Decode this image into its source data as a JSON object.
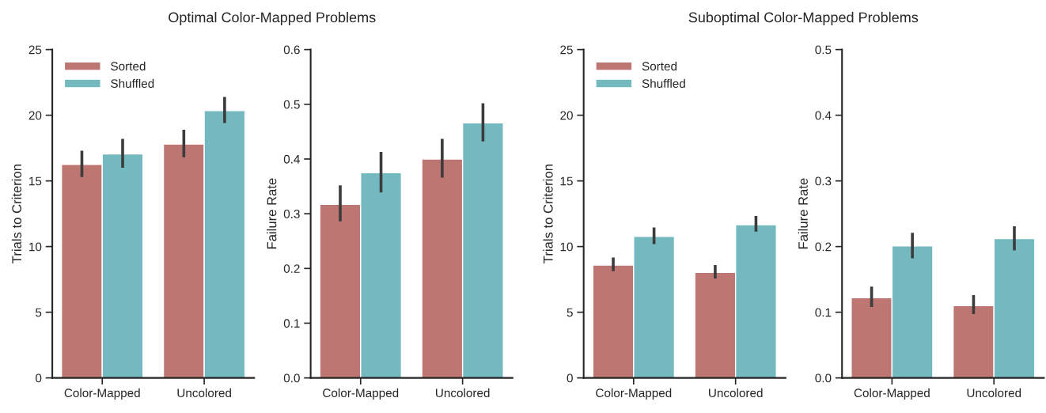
{
  "chart_data": [
    {
      "type": "bar",
      "title": "Optimal Color-Mapped Problems",
      "ylabel": "Trials to Criterion",
      "categories": [
        "Color-Mapped",
        "Uncolored"
      ],
      "ylim": [
        0,
        25
      ],
      "yticks": [
        0,
        5,
        10,
        15,
        20,
        25
      ],
      "legend": "top left",
      "series": [
        {
          "name": "Sorted",
          "color": "#cb6b65",
          "values": [
            16.25,
            17.8
          ],
          "errors": [
            [
              15.3,
              17.3
            ],
            [
              16.8,
              18.9
            ]
          ]
        },
        {
          "name": "Shuffled",
          "color": "#68c4cb",
          "values": [
            17.05,
            20.35
          ],
          "errors": [
            [
              16.0,
              18.2
            ],
            [
              19.4,
              21.4
            ]
          ]
        }
      ]
    },
    {
      "type": "bar",
      "ylabel": "Failure Rate",
      "categories": [
        "Color-Mapped",
        "Uncolored"
      ],
      "ylim": [
        0,
        0.6
      ],
      "yticks": [
        {
          "value": 0,
          "label": "0.0"
        },
        0.1,
        0.2,
        0.3,
        0.4,
        0.5,
        0.6
      ],
      "series": [
        {
          "color": "#cb6b65",
          "values": [
            0.317,
            0.4
          ],
          "errors": [
            [
              0.286,
              0.352
            ],
            [
              0.366,
              0.437
            ]
          ]
        },
        {
          "color": "#68c4cb",
          "values": [
            0.375,
            0.466
          ],
          "errors": [
            [
              0.339,
              0.413
            ],
            [
              0.432,
              0.502
            ]
          ]
        }
      ]
    },
    {
      "type": "bar",
      "title": "Suboptimal Color-Mapped Problems",
      "ylabel": "Trials to Criterion",
      "categories": [
        "Color-Mapped",
        "Uncolored"
      ],
      "ylim": [
        0,
        25
      ],
      "yticks": [
        0,
        5,
        10,
        15,
        20,
        25
      ],
      "legend": "top left",
      "series": [
        {
          "name": "Sorted",
          "color": "#cb6b65",
          "values": [
            8.59,
            8.03
          ],
          "errors": [
            [
              8.13,
              9.17
            ],
            [
              7.57,
              8.59
            ]
          ]
        },
        {
          "name": "Shuffled",
          "color": "#68c4cb",
          "values": [
            10.77,
            11.66
          ],
          "errors": [
            [
              10.19,
              11.45
            ],
            [
              11.14,
              12.32
            ]
          ]
        }
      ]
    },
    {
      "type": "bar",
      "ylabel": "Failure Rate",
      "categories": [
        "Color-Mapped",
        "Uncolored"
      ],
      "ylim": [
        0,
        0.5
      ],
      "yticks": [
        {
          "value": 0,
          "label": "0.0"
        },
        0.1,
        0.2,
        0.3,
        0.4,
        0.5
      ],
      "series": [
        {
          "color": "#cb6b65",
          "values": [
            0.122,
            0.11
          ],
          "errors": [
            [
              0.108,
              0.139
            ],
            [
              0.097,
              0.126
            ]
          ]
        },
        {
          "color": "#68c4cb",
          "values": [
            0.201,
            0.212
          ],
          "errors": [
            [
              0.182,
              0.221
            ],
            [
              0.194,
              0.231
            ]
          ]
        }
      ]
    }
  ]
}
